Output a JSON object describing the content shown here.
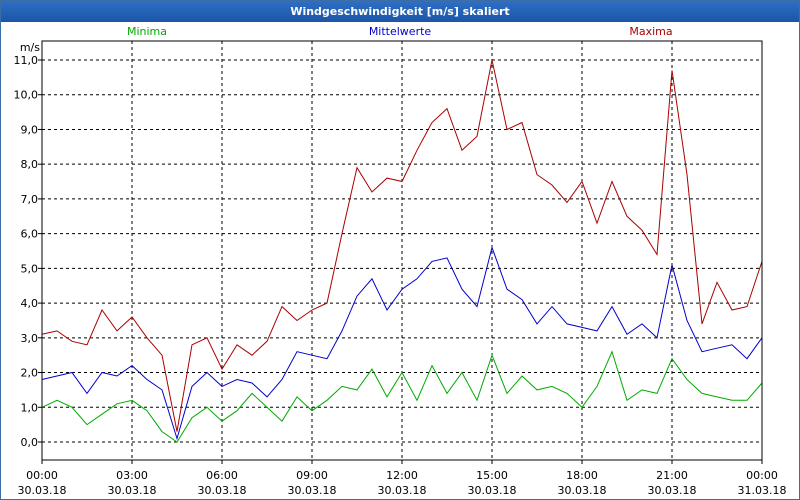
{
  "chart_data": {
    "type": "line",
    "title": "Windgeschwindigkeit [m/s] skaliert",
    "ylabel": "m/s",
    "ylim": [
      0,
      11
    ],
    "yticks": [
      "0,0",
      "1,0",
      "2,0",
      "3,0",
      "4,0",
      "5,0",
      "6,0",
      "7,0",
      "8,0",
      "9,0",
      "10,0",
      "11,0"
    ],
    "xlim": [
      0,
      24
    ],
    "xticks": [
      {
        "hour": 0,
        "time": "00:00",
        "date": "30.03.18"
      },
      {
        "hour": 3,
        "time": "03:00",
        "date": "30.03.18"
      },
      {
        "hour": 6,
        "time": "06:00",
        "date": "30.03.18"
      },
      {
        "hour": 9,
        "time": "09:00",
        "date": "30.03.18"
      },
      {
        "hour": 12,
        "time": "12:00",
        "date": "30.03.18"
      },
      {
        "hour": 15,
        "time": "15:00",
        "date": "30.03.18"
      },
      {
        "hour": 18,
        "time": "18:00",
        "date": "30.03.18"
      },
      {
        "hour": 21,
        "time": "21:00",
        "date": "30.03.18"
      },
      {
        "hour": 24,
        "time": "00:00",
        "date": "31.03.18"
      }
    ],
    "grid": true,
    "series": [
      {
        "name": "Minima",
        "color": "#00aa00",
        "x": [
          0,
          0.5,
          1,
          1.5,
          2,
          2.5,
          3,
          3.5,
          4,
          4.5,
          5,
          5.5,
          6,
          6.5,
          7,
          7.5,
          8,
          8.5,
          9,
          9.5,
          10,
          10.5,
          11,
          11.5,
          12,
          12.5,
          13,
          13.5,
          14,
          14.5,
          15,
          15.5,
          16,
          16.5,
          17,
          17.5,
          18,
          18.5,
          19,
          19.5,
          20,
          20.5,
          21,
          21.5,
          22,
          22.5,
          23,
          23.5,
          24
        ],
        "values": [
          1.0,
          1.2,
          1.0,
          0.5,
          0.8,
          1.1,
          1.2,
          0.9,
          0.3,
          0.0,
          0.7,
          1.0,
          0.6,
          0.9,
          1.4,
          1.0,
          0.6,
          1.3,
          0.9,
          1.2,
          1.6,
          1.5,
          2.1,
          1.3,
          2.0,
          1.2,
          2.2,
          1.4,
          2.0,
          1.2,
          2.5,
          1.4,
          1.9,
          1.5,
          1.6,
          1.4,
          1.0,
          1.6,
          2.6,
          1.2,
          1.5,
          1.4,
          2.4,
          1.8,
          1.4,
          1.3,
          1.2,
          1.2,
          1.7
        ]
      },
      {
        "name": "Mittelwerte",
        "color": "#0000cc",
        "x": [
          0,
          0.5,
          1,
          1.5,
          2,
          2.5,
          3,
          3.5,
          4,
          4.5,
          5,
          5.5,
          6,
          6.5,
          7,
          7.5,
          8,
          8.5,
          9,
          9.5,
          10,
          10.5,
          11,
          11.5,
          12,
          12.5,
          13,
          13.5,
          14,
          14.5,
          15,
          15.5,
          16,
          16.5,
          17,
          17.5,
          18,
          18.5,
          19,
          19.5,
          20,
          20.5,
          21,
          21.5,
          22,
          22.5,
          23,
          23.5,
          24
        ],
        "values": [
          1.8,
          1.9,
          2.0,
          1.4,
          2.0,
          1.9,
          2.2,
          1.8,
          1.5,
          0.1,
          1.6,
          2.0,
          1.6,
          1.8,
          1.7,
          1.3,
          1.8,
          2.6,
          2.5,
          2.4,
          3.2,
          4.2,
          4.7,
          3.8,
          4.4,
          4.7,
          5.2,
          5.3,
          4.4,
          3.9,
          5.6,
          4.4,
          4.1,
          3.4,
          3.9,
          3.4,
          3.3,
          3.2,
          3.9,
          3.1,
          3.4,
          3.0,
          5.1,
          3.5,
          2.6,
          2.7,
          2.8,
          2.4,
          3.0
        ]
      },
      {
        "name": "Maxima",
        "color": "#aa0000",
        "x": [
          0,
          0.5,
          1,
          1.5,
          2,
          2.5,
          3,
          3.5,
          4,
          4.5,
          5,
          5.5,
          6,
          6.5,
          7,
          7.5,
          8,
          8.5,
          9,
          9.5,
          10,
          10.5,
          11,
          11.5,
          12,
          12.5,
          13,
          13.5,
          14,
          14.5,
          15,
          15.5,
          16,
          16.5,
          17,
          17.5,
          18,
          18.5,
          19,
          19.5,
          20,
          20.5,
          21,
          21.5,
          22,
          22.5,
          23,
          23.5,
          24
        ],
        "values": [
          3.1,
          3.2,
          2.9,
          2.8,
          3.8,
          3.2,
          3.6,
          3.0,
          2.5,
          0.3,
          2.8,
          3.0,
          2.1,
          2.8,
          2.5,
          2.9,
          3.9,
          3.5,
          3.8,
          4.0,
          6.0,
          7.9,
          7.2,
          7.6,
          7.5,
          8.4,
          9.2,
          9.6,
          8.4,
          8.8,
          11.0,
          9.0,
          9.2,
          7.7,
          7.4,
          6.9,
          7.5,
          6.3,
          7.5,
          6.5,
          6.1,
          5.4,
          10.7,
          7.7,
          3.4,
          4.6,
          3.8,
          3.9,
          5.2
        ]
      }
    ]
  }
}
